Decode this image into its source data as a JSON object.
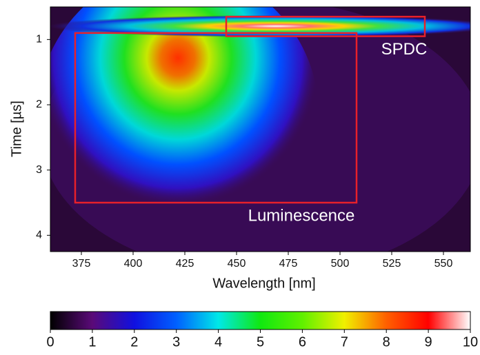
{
  "chart_data": {
    "type": "heatmap",
    "xlabel": "Wavelength [nm]",
    "ylabel": "Time [µs]",
    "xlim": [
      360,
      563
    ],
    "xticks": [
      375,
      400,
      425,
      450,
      475,
      500,
      525,
      550
    ],
    "ylim": [
      0.5,
      4.25
    ],
    "yticks": [
      1,
      2,
      3,
      4
    ],
    "y_inverted": true,
    "regions": [
      {
        "label": "Luminescence",
        "x": [
          372,
          508
        ],
        "y": [
          0.9,
          3.5
        ],
        "color": "#e8202a"
      },
      {
        "label": "SPDC",
        "x": [
          445,
          541
        ],
        "y": [
          0.65,
          0.95
        ],
        "color": "#e8202a"
      }
    ],
    "colorbar": {
      "lim": [
        0,
        10
      ],
      "ticks": [
        0,
        1,
        2,
        3,
        4,
        5,
        6,
        7,
        8,
        9,
        10
      ],
      "colors": [
        "#000000",
        "#5a0a78",
        "#1010e0",
        "#0060ff",
        "#00e8e8",
        "#10e810",
        "#60f000",
        "#f0f000",
        "#ff6000",
        "#ff0000",
        "#ffffff"
      ]
    }
  }
}
